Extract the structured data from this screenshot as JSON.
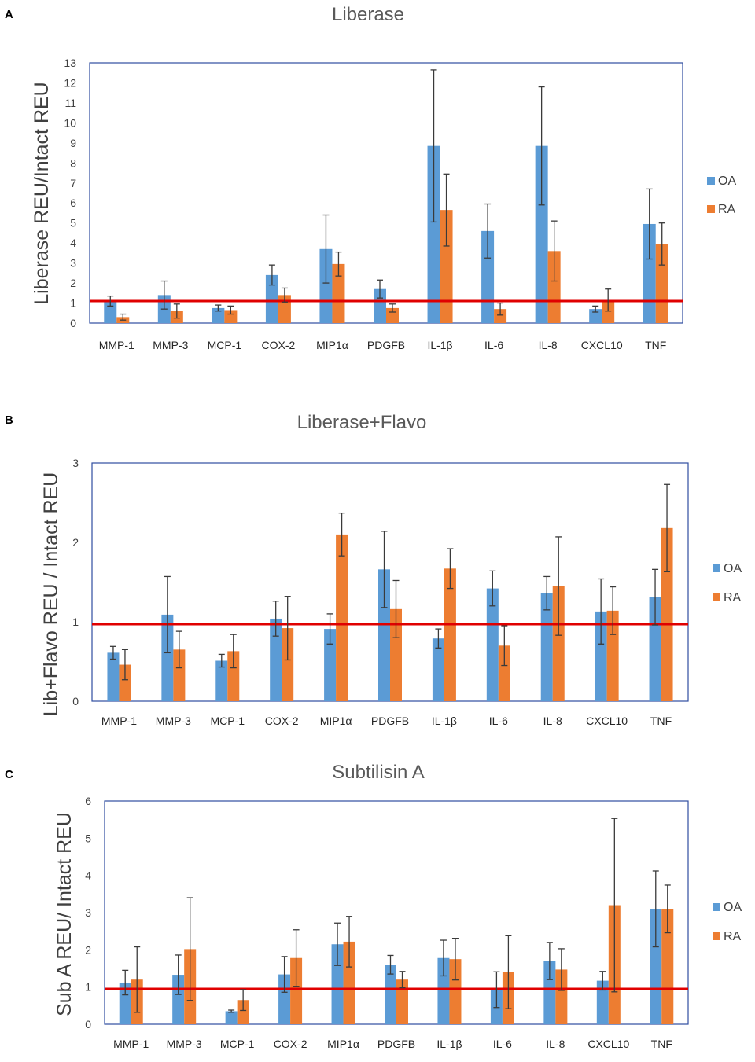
{
  "figure": {
    "colors": {
      "oa": "#5B9BD5",
      "ra": "#ED7D31",
      "reference_line": "#E00000",
      "frame": "#2F4EA0",
      "error_bar": "#3a3a3a"
    }
  },
  "chart_data": [
    {
      "panel": "A",
      "type": "bar",
      "title": "Liberase",
      "xlabel": "",
      "ylabel": "Liberase REU/Intact REU",
      "ylim": [
        0,
        13
      ],
      "yticks": [
        0,
        1,
        2,
        3,
        4,
        5,
        6,
        7,
        8,
        9,
        10,
        11,
        12,
        13
      ],
      "reference_line": 1.1,
      "categories": [
        "MMP-1",
        "MMP-3",
        "MCP-1",
        "COX-2",
        "MIP1α",
        "PDGFB",
        "IL-1β",
        "IL-6",
        "IL-8",
        "CXCL10",
        "TNF"
      ],
      "series": [
        {
          "name": "OA",
          "values": [
            1.1,
            1.4,
            0.75,
            2.4,
            3.7,
            1.7,
            8.85,
            4.6,
            8.85,
            0.7,
            4.95
          ],
          "error": [
            0.25,
            0.7,
            0.15,
            0.5,
            1.7,
            0.45,
            3.8,
            1.35,
            2.95,
            0.15,
            1.75
          ]
        },
        {
          "name": "RA",
          "values": [
            0.3,
            0.6,
            0.65,
            1.4,
            2.95,
            0.75,
            5.65,
            0.7,
            3.6,
            1.15,
            3.95
          ],
          "error": [
            0.15,
            0.35,
            0.2,
            0.35,
            0.6,
            0.2,
            1.8,
            0.3,
            1.5,
            0.55,
            1.05
          ]
        }
      ]
    },
    {
      "panel": "B",
      "type": "bar",
      "title": "Liberase+Flavo",
      "xlabel": "",
      "ylabel": "Lib+Flavo REU / Intact REU",
      "ylim": [
        0,
        3
      ],
      "yticks": [
        0,
        1,
        2,
        3
      ],
      "reference_line": 0.97,
      "categories": [
        "MMP-1",
        "MMP-3",
        "MCP-1",
        "COX-2",
        "MIP1α",
        "PDGFB",
        "IL-1β",
        "IL-6",
        "IL-8",
        "CXCL10",
        "TNF"
      ],
      "series": [
        {
          "name": "OA",
          "values": [
            0.61,
            1.09,
            0.51,
            1.04,
            0.91,
            1.66,
            0.79,
            1.42,
            1.36,
            1.13,
            1.31
          ],
          "error": [
            0.08,
            0.48,
            0.08,
            0.22,
            0.19,
            0.48,
            0.12,
            0.22,
            0.21,
            0.41,
            0.35
          ]
        },
        {
          "name": "RA",
          "values": [
            0.46,
            0.65,
            0.63,
            0.92,
            2.1,
            1.16,
            1.67,
            0.7,
            1.45,
            1.14,
            2.18
          ],
          "error": [
            0.19,
            0.23,
            0.21,
            0.4,
            0.27,
            0.36,
            0.25,
            0.25,
            0.62,
            0.3,
            0.55
          ]
        }
      ]
    },
    {
      "panel": "C",
      "type": "bar",
      "title": "Subtilisin A",
      "xlabel": "",
      "ylabel": "Sub A REU/ Intact REU",
      "ylim": [
        0,
        6
      ],
      "yticks": [
        0,
        1,
        2,
        3,
        4,
        5,
        6
      ],
      "reference_line": 0.95,
      "categories": [
        "MMP-1",
        "MMP-3",
        "MCP-1",
        "COX-2",
        "MIP1α",
        "PDGFB",
        "IL-1β",
        "IL-6",
        "IL-8",
        "CXCL10",
        "TNF"
      ],
      "series": [
        {
          "name": "OA",
          "values": [
            1.12,
            1.33,
            0.35,
            1.34,
            2.15,
            1.6,
            1.78,
            0.93,
            1.7,
            1.17,
            3.1
          ],
          "error": [
            0.33,
            0.53,
            0.03,
            0.48,
            0.57,
            0.25,
            0.48,
            0.48,
            0.5,
            0.25,
            1.02
          ]
        },
        {
          "name": "RA",
          "values": [
            1.2,
            2.02,
            0.65,
            1.78,
            2.22,
            1.2,
            1.75,
            1.4,
            1.47,
            3.2,
            3.1
          ],
          "error": [
            0.88,
            1.38,
            0.28,
            0.76,
            0.68,
            0.22,
            0.56,
            0.98,
            0.56,
            2.33,
            0.64
          ]
        }
      ]
    }
  ]
}
